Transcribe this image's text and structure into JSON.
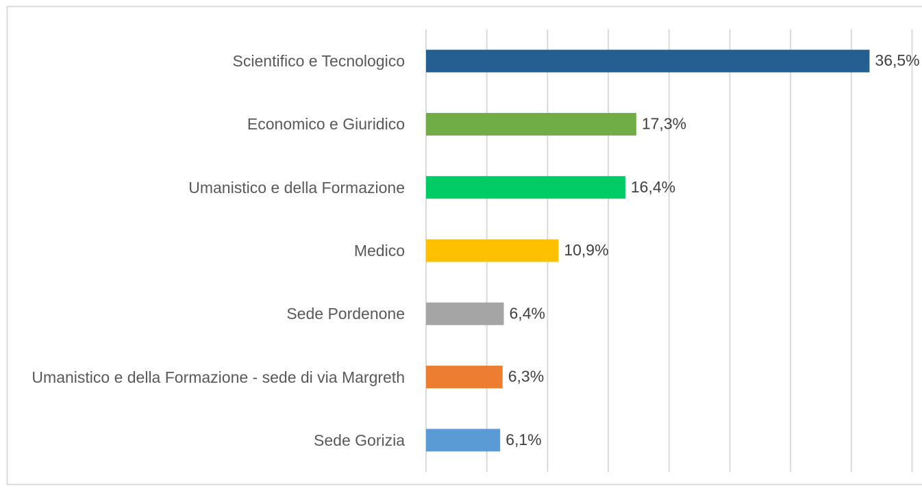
{
  "chart_data": {
    "type": "hbar",
    "categories": [
      "Scientifico e Tecnologico",
      "Economico e Giuridico",
      "Umanistico e della Formazione",
      "Medico",
      "Sede Pordenone",
      "Umanistico e della Formazione - sede di via Margreth",
      "Sede Gorizia"
    ],
    "values": [
      36.5,
      17.3,
      16.4,
      10.9,
      6.4,
      6.3,
      6.1
    ],
    "value_labels": [
      "36,5%",
      "17,3%",
      "16,4%",
      "10,9%",
      "6,4%",
      "6,3%",
      "6,1%"
    ],
    "colors": [
      "#255e91",
      "#70ad47",
      "#00cc66",
      "#ffc000",
      "#a5a5a5",
      "#ed7d31",
      "#5b9bd5"
    ],
    "xlim": [
      0,
      40
    ],
    "xticks": [
      0,
      5,
      10,
      15,
      20,
      25,
      30,
      35,
      40
    ],
    "grid": true
  }
}
